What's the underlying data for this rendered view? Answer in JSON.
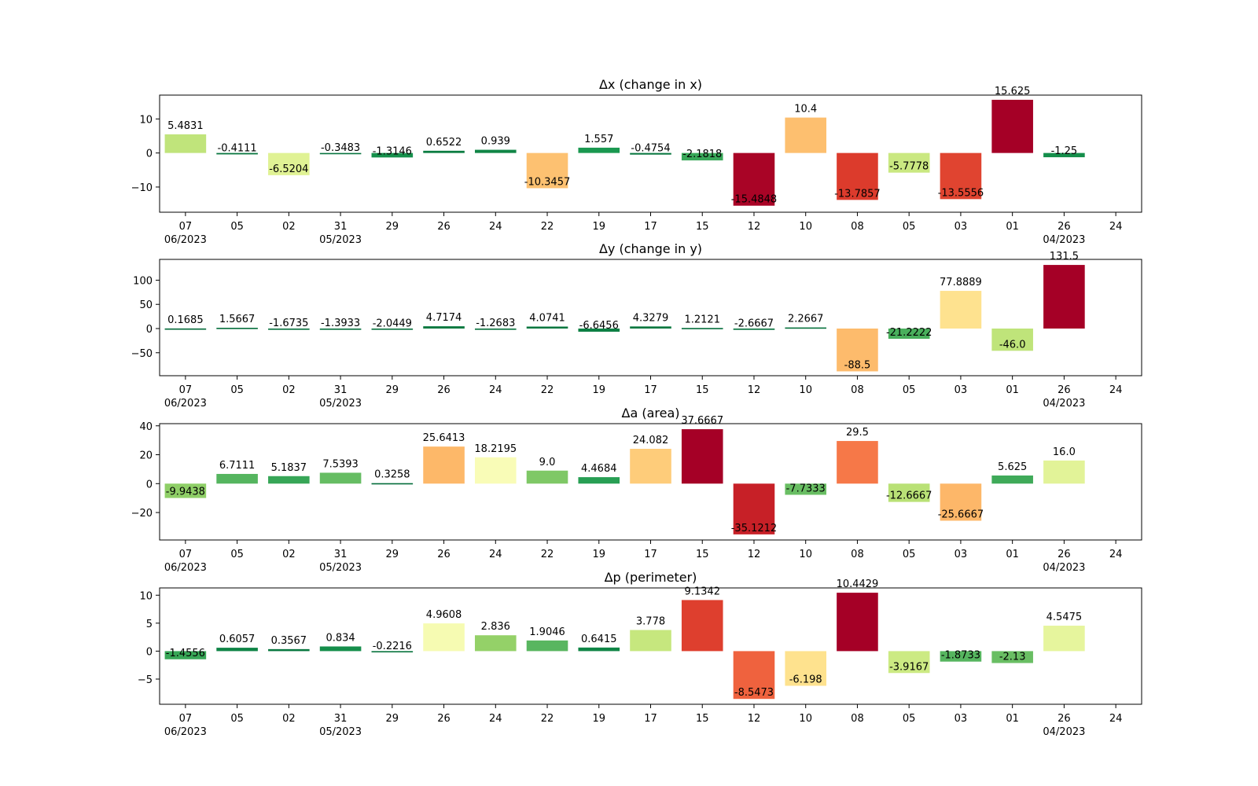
{
  "chart_data": [
    {
      "type": "bar",
      "title": "Δx (change in x)",
      "categories": [
        "07",
        "05",
        "02",
        "31",
        "29",
        "26",
        "24",
        "22",
        "19",
        "17",
        "15",
        "12",
        "10",
        "08",
        "05",
        "03",
        "01",
        "26"
      ],
      "values": [
        5.4831,
        -0.4111,
        -6.5204,
        -0.3483,
        -1.3146,
        0.6522,
        0.939,
        -10.3457,
        1.557,
        -0.4754,
        -2.1818,
        -15.4848,
        10.4,
        -13.7857,
        -5.7778,
        -13.5556,
        15.625,
        -1.25
      ],
      "labels": [
        "5.4831",
        "-0.4111",
        "-6.5204",
        "-0.3483",
        "-1.3146",
        "0.6522",
        "0.939",
        "-10.3457",
        "1.557",
        "-0.4754",
        "-2.1818",
        "-15.4848",
        "10.4",
        "-13.7857",
        "-5.7778",
        "-13.5556",
        "15.625",
        "-1.25"
      ],
      "ylim": [
        -17.4,
        17.0
      ],
      "yticks": [
        10,
        0,
        -10
      ],
      "ytick_labels": [
        "10",
        "0",
        "−10"
      ],
      "xlim": [
        -0.5,
        18.5
      ]
    },
    {
      "type": "bar",
      "title": "Δy (change in y)",
      "categories": [
        "07",
        "05",
        "02",
        "31",
        "29",
        "26",
        "24",
        "22",
        "19",
        "17",
        "15",
        "12",
        "10",
        "08",
        "05",
        "03",
        "01",
        "26"
      ],
      "values": [
        0.1685,
        1.5667,
        -1.6735,
        -1.3933,
        -2.0449,
        4.7174,
        -1.2683,
        4.0741,
        -6.6456,
        4.3279,
        1.2121,
        -2.6667,
        2.2667,
        -88.5,
        -21.2222,
        77.8889,
        -46.0,
        131.5
      ],
      "labels": [
        "0.1685",
        "1.5667",
        "-1.6735",
        "-1.3933",
        "-2.0449",
        "4.7174",
        "-1.2683",
        "4.0741",
        "-6.6456",
        "4.3279",
        "1.2121",
        "-2.6667",
        "2.2667",
        "-88.5",
        "-21.2222",
        "77.8889",
        "-46.0",
        "131.5"
      ],
      "ylim": [
        -97.5,
        143.0
      ],
      "yticks": [
        100,
        50,
        0,
        -50
      ],
      "ytick_labels": [
        "100",
        "50",
        "0",
        "−50"
      ],
      "xlim": [
        -0.5,
        18.5
      ]
    },
    {
      "type": "bar",
      "title": "Δa (area)",
      "categories": [
        "07",
        "05",
        "02",
        "31",
        "29",
        "26",
        "24",
        "22",
        "19",
        "17",
        "15",
        "12",
        "10",
        "08",
        "05",
        "03",
        "01",
        "26"
      ],
      "values": [
        -9.9438,
        6.7111,
        5.1837,
        7.5393,
        0.3258,
        25.6413,
        18.2195,
        9.0,
        4.4684,
        24.082,
        37.6667,
        -35.1212,
        -7.7333,
        29.5,
        -12.6667,
        -25.6667,
        5.625,
        16.0
      ],
      "labels": [
        "-9.9438",
        "6.7111",
        "5.1837",
        "7.5393",
        "0.3258",
        "25.6413",
        "18.2195",
        "9.0",
        "4.4684",
        "24.082",
        "37.6667",
        "-35.1212",
        "-7.7333",
        "29.5",
        "-12.6667",
        "-25.6667",
        "5.625",
        "16.0"
      ],
      "ylim": [
        -39.0,
        41.5
      ],
      "yticks": [
        40,
        20,
        0,
        -20
      ],
      "ytick_labels": [
        "40",
        "20",
        "0",
        "−20"
      ],
      "xlim": [
        -0.5,
        18.5
      ]
    },
    {
      "type": "bar",
      "title": "Δp (perimeter)",
      "categories": [
        "07",
        "05",
        "02",
        "31",
        "29",
        "26",
        "24",
        "22",
        "19",
        "17",
        "15",
        "12",
        "10",
        "08",
        "05",
        "03",
        "01",
        "26"
      ],
      "values": [
        -1.4556,
        0.6057,
        0.3567,
        0.834,
        -0.2216,
        4.9608,
        2.836,
        1.9046,
        0.6415,
        3.778,
        9.1342,
        -8.5473,
        -6.198,
        10.4429,
        -3.9167,
        -1.8733,
        -2.13,
        4.5475
      ],
      "labels": [
        "-1.4556",
        "0.6057",
        "0.3567",
        "0.834",
        "-0.2216",
        "4.9608",
        "2.836",
        "1.9046",
        "0.6415",
        "3.778",
        "9.1342",
        "-8.5473",
        "-6.198",
        "10.4429",
        "-3.9167",
        "-1.8733",
        "-2.13",
        "4.5475"
      ],
      "ylim": [
        -9.5,
        11.3
      ],
      "yticks": [
        10,
        5,
        0,
        -5
      ],
      "ytick_labels": [
        "10",
        "5",
        "0",
        "−5"
      ],
      "xlim": [
        -0.5,
        18.5
      ]
    }
  ],
  "x_tick_labels": [
    "07",
    "05",
    "02",
    "31",
    "29",
    "26",
    "24",
    "22",
    "19",
    "17",
    "15",
    "12",
    "10",
    "08",
    "05",
    "03",
    "01",
    "26",
    "24"
  ],
  "x_month_labels": [
    {
      "index": 0,
      "text": "06/2023"
    },
    {
      "index": 3,
      "text": "05/2023"
    },
    {
      "index": 17,
      "text": "04/2023"
    }
  ],
  "colormap": [
    "#006837",
    "#1a9850",
    "#66bd63",
    "#a6d96a",
    "#d9ef8b",
    "#ffffbf",
    "#fee08b",
    "#fdae61",
    "#f46d43",
    "#d73027",
    "#a50026"
  ]
}
